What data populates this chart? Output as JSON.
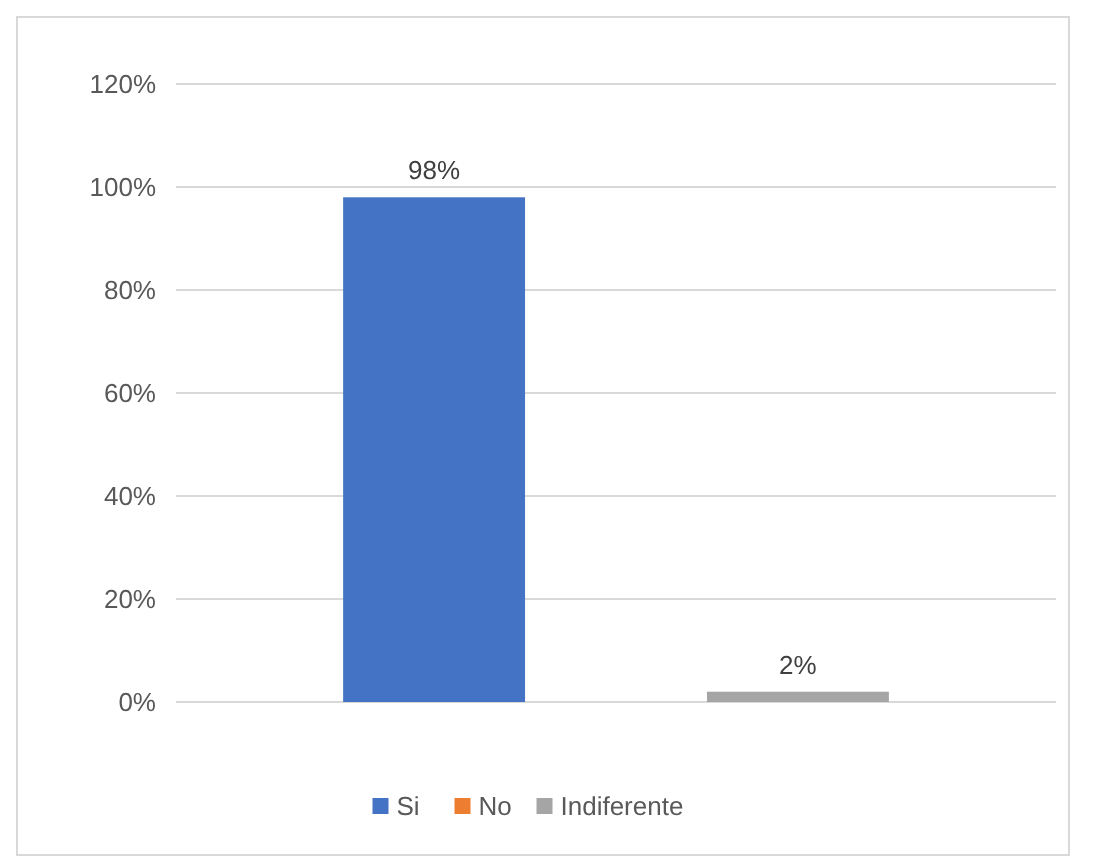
{
  "chart_data": {
    "type": "bar",
    "categories": [
      null
    ],
    "series": [
      {
        "name": "Si",
        "color": "#4472c4",
        "values": [
          98
        ],
        "value_labels": [
          "98%"
        ]
      },
      {
        "name": "No",
        "color": "#ed7d31",
        "values": [
          0
        ],
        "value_labels": [
          null
        ]
      },
      {
        "name": "Indiferente",
        "color": "#a5a5a5",
        "values": [
          2
        ],
        "value_labels": [
          "2%"
        ]
      }
    ],
    "ylim": [
      0,
      120
    ],
    "yticks": [
      {
        "value": 0,
        "label": "0%"
      },
      {
        "value": 20,
        "label": "20%"
      },
      {
        "value": 40,
        "label": "40%"
      },
      {
        "value": 60,
        "label": "60%"
      },
      {
        "value": 80,
        "label": "80%"
      },
      {
        "value": 100,
        "label": "100%"
      },
      {
        "value": 120,
        "label": "120%"
      }
    ],
    "grid": "y",
    "legend": "bottom"
  }
}
